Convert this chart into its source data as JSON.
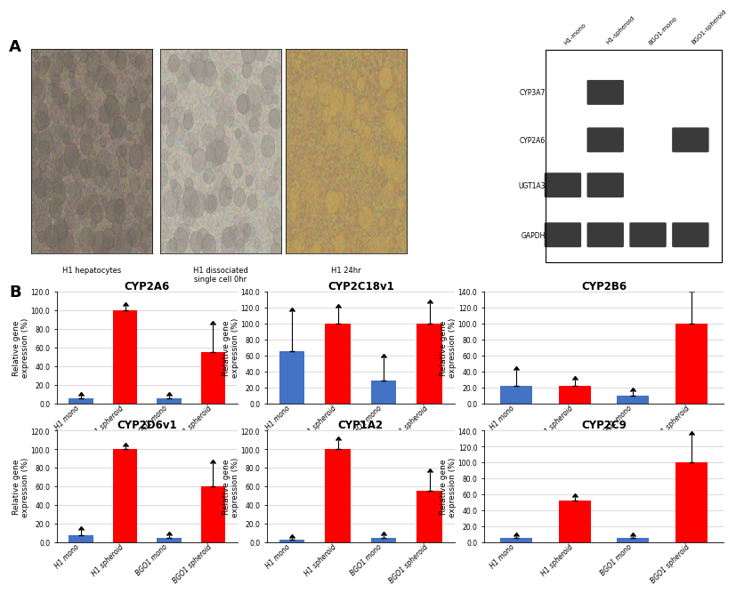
{
  "panel_A_label": "A",
  "panel_B_label": "B",
  "photo_labels": [
    "H1 hepatocytes",
    "H1 dissociated\nsingle cell 0hr",
    "H1 24hr"
  ],
  "gel_labels": [
    "CYP3A7",
    "CYP2A6",
    "UGT1A3",
    "GAPDH"
  ],
  "gel_col_labels": [
    "H1-mono",
    "H1-spheroid",
    "BGO1-mono",
    "BGO1-spheroid"
  ],
  "bar_categories": [
    "H1 mono",
    "H1 spheroid",
    "BGO1 mono",
    "BGO1 spheroid"
  ],
  "bar_colors": [
    "#4472C4",
    "#FF0000",
    "#4472C4",
    "#FF0000"
  ],
  "charts": [
    {
      "title": "CYP2A6",
      "ylim": [
        0,
        120.0
      ],
      "yticks": [
        0.0,
        20.0,
        40.0,
        60.0,
        80.0,
        100.0,
        120.0
      ],
      "ylabel": "Relative gene\nexpression (%)",
      "values": [
        5,
        100,
        5,
        55
      ],
      "errors": [
        3,
        5,
        3,
        30
      ]
    },
    {
      "title": "CYP2C18v1",
      "ylim": [
        0,
        140.0
      ],
      "yticks": [
        0.0,
        20.0,
        40.0,
        60.0,
        80.0,
        100.0,
        120.0,
        140.0
      ],
      "ylabel": "Relative gene\nexpression (%)",
      "values": [
        65,
        100,
        28,
        100
      ],
      "errors": [
        50,
        20,
        30,
        25
      ]
    },
    {
      "title": "CYP2B6",
      "ylim": [
        0,
        140.0
      ],
      "yticks": [
        0.0,
        20.0,
        40.0,
        60.0,
        80.0,
        100.0,
        120.0,
        140.0
      ],
      "ylabel": "Relative gene\nexpression (%)",
      "values": [
        22,
        22,
        10,
        100
      ],
      "errors": [
        20,
        8,
        5,
        40
      ]
    },
    {
      "title": "CYP2D6v1",
      "ylim": [
        0,
        120.0
      ],
      "yticks": [
        0.0,
        20.0,
        40.0,
        60.0,
        80.0,
        100.0,
        120.0
      ],
      "ylabel": "Relative gene\nexpression (%)",
      "values": [
        8,
        100,
        5,
        60
      ],
      "errors": [
        5,
        3,
        3,
        25
      ]
    },
    {
      "title": "CYP1A2",
      "ylim": [
        0,
        120.0
      ],
      "yticks": [
        0.0,
        20.0,
        40.0,
        60.0,
        80.0,
        100.0,
        120.0
      ],
      "ylabel": "Relative gene\nexpression (%)",
      "values": [
        3,
        100,
        5,
        55
      ],
      "errors": [
        2,
        10,
        3,
        20
      ]
    },
    {
      "title": "CYP2C9",
      "ylim": [
        0,
        140.0
      ],
      "yticks": [
        0.0,
        20.0,
        40.0,
        60.0,
        80.0,
        100.0,
        120.0,
        140.0
      ],
      "ylabel": "Relative gene\nexpression (%)",
      "values": [
        5,
        52,
        5,
        100
      ],
      "errors": [
        3,
        5,
        3,
        35
      ]
    }
  ],
  "bg_color": "#FFFFFF",
  "grid_color": "#CCCCCC",
  "label_fontsize": 6.5,
  "title_fontsize": 8.5,
  "tick_fontsize": 5.5
}
